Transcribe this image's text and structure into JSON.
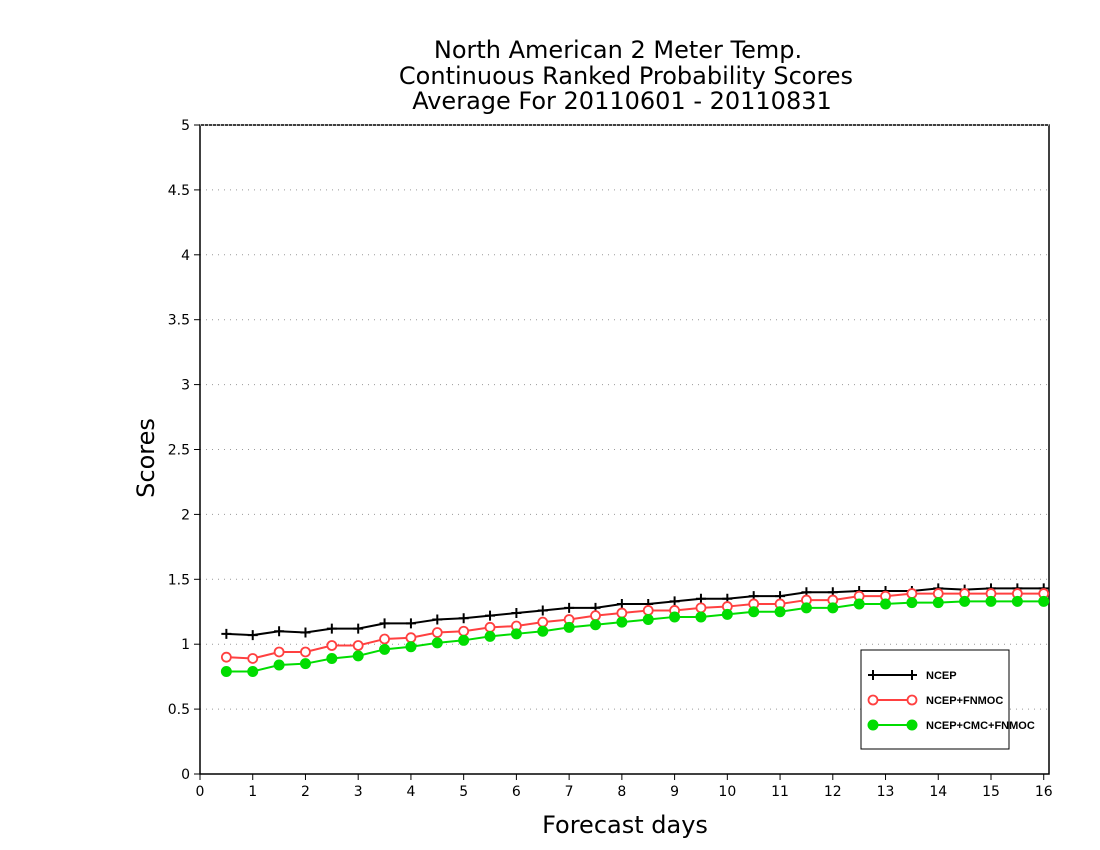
{
  "chart_data": {
    "type": "line",
    "title": [
      "North American 2 Meter Temp.",
      "Continuous Ranked Probability Scores",
      "Average For 20110601 - 20110831"
    ],
    "xlabel": "Forecast days",
    "ylabel": "Scores",
    "xlim": [
      0,
      16.1
    ],
    "ylim": [
      0,
      5
    ],
    "x_ticks": [
      "0",
      "1",
      "2",
      "3",
      "4",
      "5",
      "6",
      "7",
      "8",
      "9",
      "10",
      "11",
      "12",
      "13",
      "14",
      "15",
      "16"
    ],
    "y_ticks": [
      "0",
      "0.5",
      "1",
      "1.5",
      "2",
      "2.5",
      "3",
      "3.5",
      "4",
      "4.5",
      "5"
    ],
    "grid": "horizontal dotted",
    "legend_position": "bottom-right",
    "x": [
      0.5,
      1,
      1.5,
      2,
      2.5,
      3,
      3.5,
      4,
      4.5,
      5,
      5.5,
      6,
      6.5,
      7,
      7.5,
      8,
      8.5,
      9,
      9.5,
      10,
      10.5,
      11,
      11.5,
      12,
      12.5,
      13,
      13.5,
      14,
      14.5,
      15,
      15.5,
      16
    ],
    "series": [
      {
        "name": "NCEP",
        "color": "#000000",
        "marker": "plus",
        "values": [
          1.08,
          1.07,
          1.1,
          1.09,
          1.12,
          1.12,
          1.16,
          1.16,
          1.19,
          1.2,
          1.22,
          1.24,
          1.26,
          1.28,
          1.28,
          1.31,
          1.31,
          1.33,
          1.35,
          1.35,
          1.37,
          1.37,
          1.4,
          1.4,
          1.41,
          1.41,
          1.41,
          1.43,
          1.42,
          1.43,
          1.43,
          1.43
        ]
      },
      {
        "name": "NCEP+FNMOC",
        "color": "#ff4040",
        "marker": "open-circle",
        "values": [
          0.9,
          0.89,
          0.94,
          0.94,
          0.99,
          0.99,
          1.04,
          1.05,
          1.09,
          1.1,
          1.13,
          1.14,
          1.17,
          1.19,
          1.22,
          1.24,
          1.26,
          1.26,
          1.28,
          1.29,
          1.31,
          1.31,
          1.34,
          1.34,
          1.37,
          1.37,
          1.39,
          1.39,
          1.39,
          1.39,
          1.39,
          1.39
        ]
      },
      {
        "name": "NCEP+CMC+FNMOC",
        "color": "#00dd00",
        "marker": "filled-circle",
        "values": [
          0.79,
          0.79,
          0.84,
          0.85,
          0.89,
          0.91,
          0.96,
          0.98,
          1.01,
          1.03,
          1.06,
          1.08,
          1.1,
          1.13,
          1.15,
          1.17,
          1.19,
          1.21,
          1.21,
          1.23,
          1.25,
          1.25,
          1.28,
          1.28,
          1.31,
          1.31,
          1.32,
          1.32,
          1.33,
          1.33,
          1.33,
          1.33
        ]
      }
    ]
  }
}
